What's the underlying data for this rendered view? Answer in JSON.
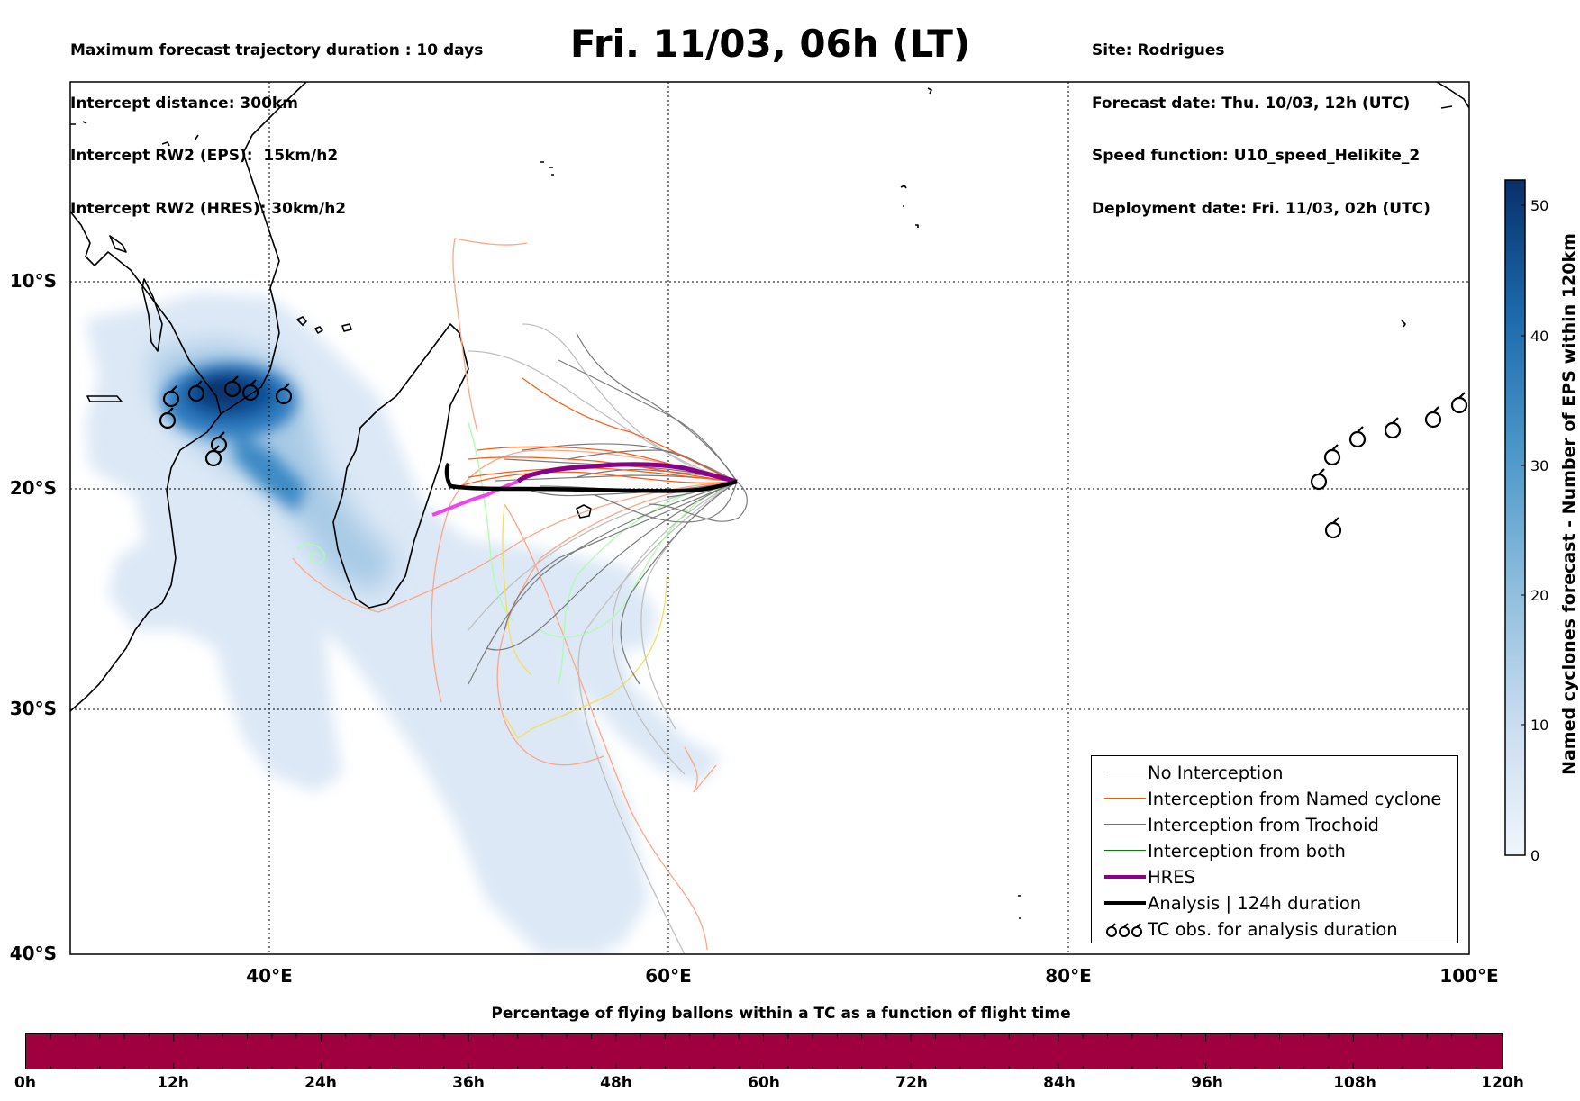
{
  "header": {
    "left_lines": [
      "Maximum forecast trajectory duration : 10 days",
      "Intercept distance: 300km",
      "Intercept RW2 (EPS):  15km/h2",
      "Intercept RW2 (HRES): 30km/h2"
    ],
    "title": "Fri. 11/03, 06h (LT)",
    "right_lines": [
      "Site: Rodrigues",
      "Forecast date: Thu. 10/03, 12h (UTC)",
      "Speed function: U10_speed_Helikite_2",
      "Deployment date: Fri. 11/03, 02h (UTC)"
    ]
  },
  "map": {
    "lat_labels": [
      "10°S",
      "20°S",
      "30°S",
      "40°S"
    ],
    "lon_labels": [
      "40°E",
      "60°E",
      "80°E",
      "100°E"
    ],
    "extent": {
      "lon": [
        30,
        100
      ],
      "lat": [
        -1,
        -40
      ]
    },
    "gridlines": true,
    "hres_track_color": "#8b008b",
    "analysis_track_color": "#000000"
  },
  "legend": {
    "items": [
      {
        "label": "No Interception",
        "color": "#808080",
        "style": "thin"
      },
      {
        "label": "Interception from Named cyclone",
        "color": "#ff5500",
        "style": "thin"
      },
      {
        "label": "Interception from Trochoid",
        "color": "#808000",
        "style": "thin"
      },
      {
        "label": "Interception from both",
        "color": "#008000",
        "style": "thin"
      },
      {
        "label": "HRES",
        "color": "#8b008b",
        "style": "thick"
      },
      {
        "label": "Analysis | 124h duration",
        "color": "#000000",
        "style": "thick"
      },
      {
        "label": "TC obs. for analysis duration",
        "color": "#000000",
        "style": "cyclone-symbols"
      }
    ]
  },
  "colorbar": {
    "title": "Named cyclones forecast - Number of EPS within 120km",
    "ticks": [
      "0",
      "10",
      "20",
      "30",
      "40",
      "50"
    ],
    "range": [
      0,
      52
    ],
    "color_low": "#e6effa",
    "color_high": "#08306b"
  },
  "percentage_bar": {
    "title": "Percentage of flying ballons within a TC as a function of flight time",
    "labels": [
      "0h",
      "12h",
      "24h",
      "36h",
      "48h",
      "60h",
      "72h",
      "84h",
      "96h",
      "108h",
      "120h"
    ],
    "fill_color": "#a00040"
  }
}
